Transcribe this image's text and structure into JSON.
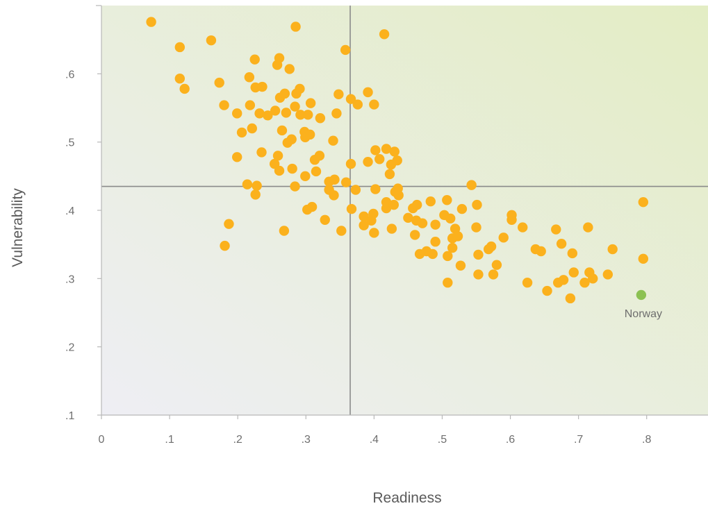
{
  "chart_data": {
    "type": "scatter",
    "title": "",
    "xlabel": "Readiness",
    "ylabel": "Vulnerability",
    "xlim": [
      0,
      0.89
    ],
    "ylim": [
      0.1,
      0.7
    ],
    "x_ticks": [
      "0",
      ".1",
      ".2",
      ".3",
      ".4",
      ".5",
      ".6",
      ".7",
      ".8"
    ],
    "x_tick_values": [
      0,
      0.1,
      0.2,
      0.3,
      0.4,
      0.5,
      0.6,
      0.7,
      0.8
    ],
    "y_ticks": [
      ".1",
      ".2",
      ".3",
      ".4",
      ".5",
      ".6"
    ],
    "y_tick_values": [
      0.1,
      0.2,
      0.3,
      0.4,
      0.5,
      0.6
    ],
    "reference_lines": {
      "x": 0.365,
      "y": 0.435
    },
    "grid": false,
    "colors": {
      "points": "#fbb11d",
      "highlight": "#8cc152",
      "reference_line": "#8a8a8a",
      "axis": "#b8b8b8",
      "background_low": "#eeeef4",
      "background_high": "#e3edc4"
    },
    "series": [
      {
        "values": [
          [
            0.073,
            0.676
          ],
          [
            0.115,
            0.639
          ],
          [
            0.115,
            0.593
          ],
          [
            0.122,
            0.578
          ],
          [
            0.161,
            0.649
          ],
          [
            0.173,
            0.587
          ],
          [
            0.18,
            0.554
          ],
          [
            0.199,
            0.542
          ],
          [
            0.199,
            0.478
          ],
          [
            0.206,
            0.514
          ],
          [
            0.214,
            0.438
          ],
          [
            0.217,
            0.595
          ],
          [
            0.218,
            0.554
          ],
          [
            0.221,
            0.52
          ],
          [
            0.225,
            0.621
          ],
          [
            0.226,
            0.58
          ],
          [
            0.226,
            0.423
          ],
          [
            0.228,
            0.436
          ],
          [
            0.232,
            0.542
          ],
          [
            0.235,
            0.485
          ],
          [
            0.236,
            0.581
          ],
          [
            0.244,
            0.539
          ],
          [
            0.254,
            0.468
          ],
          [
            0.255,
            0.546
          ],
          [
            0.258,
            0.613
          ],
          [
            0.259,
            0.48
          ],
          [
            0.261,
            0.623
          ],
          [
            0.261,
            0.458
          ],
          [
            0.262,
            0.565
          ],
          [
            0.265,
            0.517
          ],
          [
            0.269,
            0.571
          ],
          [
            0.271,
            0.543
          ],
          [
            0.273,
            0.499
          ],
          [
            0.276,
            0.607
          ],
          [
            0.279,
            0.504
          ],
          [
            0.28,
            0.461
          ],
          [
            0.284,
            0.435
          ],
          [
            0.284,
            0.552
          ],
          [
            0.285,
            0.669
          ],
          [
            0.286,
            0.571
          ],
          [
            0.291,
            0.578
          ],
          [
            0.292,
            0.54
          ],
          [
            0.298,
            0.515
          ],
          [
            0.299,
            0.45
          ],
          [
            0.299,
            0.507
          ],
          [
            0.303,
            0.54
          ],
          [
            0.306,
            0.511
          ],
          [
            0.307,
            0.557
          ],
          [
            0.313,
            0.474
          ],
          [
            0.315,
            0.457
          ],
          [
            0.32,
            0.48
          ],
          [
            0.321,
            0.535
          ],
          [
            0.334,
            0.442
          ],
          [
            0.334,
            0.43
          ],
          [
            0.34,
            0.502
          ],
          [
            0.341,
            0.422
          ],
          [
            0.342,
            0.445
          ],
          [
            0.345,
            0.542
          ],
          [
            0.348,
            0.57
          ],
          [
            0.358,
            0.635
          ],
          [
            0.359,
            0.441
          ],
          [
            0.366,
            0.468
          ],
          [
            0.366,
            0.563
          ],
          [
            0.367,
            0.402
          ],
          [
            0.373,
            0.43
          ],
          [
            0.376,
            0.555
          ],
          [
            0.385,
            0.378
          ],
          [
            0.385,
            0.391
          ],
          [
            0.391,
            0.573
          ],
          [
            0.391,
            0.471
          ],
          [
            0.396,
            0.385
          ],
          [
            0.399,
            0.395
          ],
          [
            0.4,
            0.555
          ],
          [
            0.4,
            0.367
          ],
          [
            0.402,
            0.431
          ],
          [
            0.402,
            0.488
          ],
          [
            0.408,
            0.475
          ],
          [
            0.415,
            0.658
          ],
          [
            0.418,
            0.403
          ],
          [
            0.418,
            0.49
          ],
          [
            0.418,
            0.412
          ],
          [
            0.423,
            0.453
          ],
          [
            0.425,
            0.467
          ],
          [
            0.426,
            0.373
          ],
          [
            0.429,
            0.408
          ],
          [
            0.43,
            0.486
          ],
          [
            0.431,
            0.427
          ],
          [
            0.434,
            0.473
          ],
          [
            0.435,
            0.432
          ],
          [
            0.436,
            0.422
          ],
          [
            0.45,
            0.389
          ],
          [
            0.457,
            0.403
          ],
          [
            0.46,
            0.364
          ],
          [
            0.462,
            0.385
          ],
          [
            0.463,
            0.408
          ],
          [
            0.467,
            0.336
          ],
          [
            0.471,
            0.381
          ],
          [
            0.477,
            0.34
          ],
          [
            0.483,
            0.413
          ],
          [
            0.486,
            0.336
          ],
          [
            0.49,
            0.354
          ],
          [
            0.49,
            0.379
          ],
          [
            0.503,
            0.393
          ],
          [
            0.507,
            0.415
          ],
          [
            0.508,
            0.333
          ],
          [
            0.508,
            0.294
          ],
          [
            0.512,
            0.388
          ],
          [
            0.515,
            0.345
          ],
          [
            0.515,
            0.359
          ],
          [
            0.519,
            0.373
          ],
          [
            0.523,
            0.362
          ],
          [
            0.527,
            0.319
          ],
          [
            0.529,
            0.402
          ],
          [
            0.543,
            0.437
          ],
          [
            0.55,
            0.375
          ],
          [
            0.551,
            0.408
          ],
          [
            0.553,
            0.335
          ],
          [
            0.553,
            0.306
          ],
          [
            0.568,
            0.343
          ],
          [
            0.572,
            0.347
          ],
          [
            0.575,
            0.306
          ],
          [
            0.58,
            0.32
          ],
          [
            0.59,
            0.36
          ],
          [
            0.602,
            0.386
          ],
          [
            0.602,
            0.393
          ],
          [
            0.618,
            0.375
          ],
          [
            0.625,
            0.294
          ],
          [
            0.637,
            0.343
          ],
          [
            0.645,
            0.34
          ],
          [
            0.654,
            0.282
          ],
          [
            0.667,
            0.372
          ],
          [
            0.67,
            0.294
          ],
          [
            0.675,
            0.351
          ],
          [
            0.678,
            0.298
          ],
          [
            0.688,
            0.271
          ],
          [
            0.691,
            0.337
          ],
          [
            0.693,
            0.309
          ],
          [
            0.709,
            0.294
          ],
          [
            0.714,
            0.375
          ],
          [
            0.716,
            0.309
          ],
          [
            0.721,
            0.3
          ],
          [
            0.743,
            0.306
          ],
          [
            0.75,
            0.343
          ],
          [
            0.795,
            0.412
          ],
          [
            0.795,
            0.329
          ],
          [
            0.328,
            0.386
          ],
          [
            0.352,
            0.37
          ],
          [
            0.268,
            0.37
          ],
          [
            0.309,
            0.405
          ],
          [
            0.302,
            0.401
          ],
          [
            0.187,
            0.38
          ],
          [
            0.181,
            0.348
          ]
        ]
      }
    ],
    "highlight": {
      "label": "Norway",
      "x": 0.792,
      "y": 0.276
    }
  }
}
